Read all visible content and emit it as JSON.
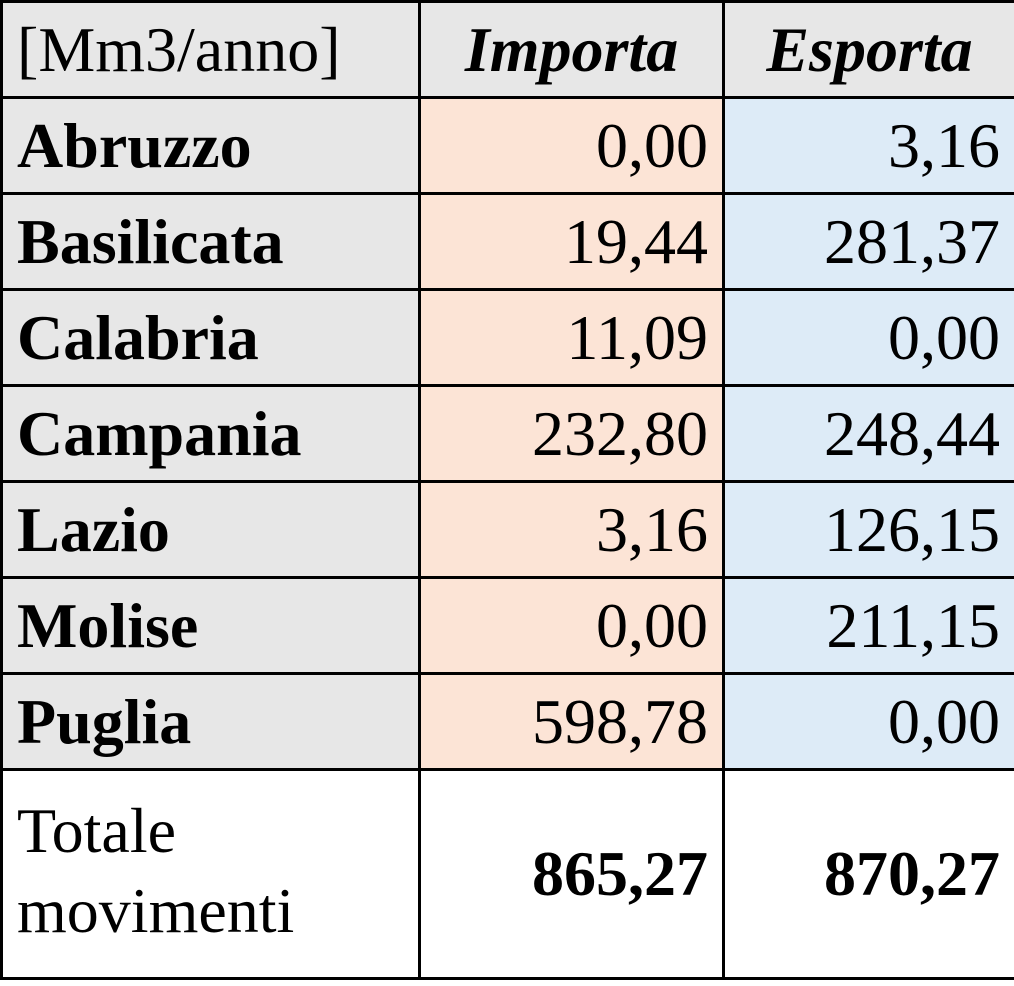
{
  "table": {
    "header": [
      "[Mm3/anno]",
      "Importa",
      "Esporta"
    ],
    "rows": [
      [
        "Abruzzo",
        "0,00",
        "3,16"
      ],
      [
        "Basilicata",
        "19,44",
        "281,37"
      ],
      [
        "Calabria",
        "11,09",
        "0,00"
      ],
      [
        "Campania",
        "232,80",
        "248,44"
      ],
      [
        "Lazio",
        "3,16",
        "126,15"
      ],
      [
        "Molise",
        "0,00",
        "211,15"
      ],
      [
        "Puglia",
        "598,78",
        "0,00"
      ]
    ],
    "total": [
      "Totale movimenti",
      "865,27",
      "870,27"
    ]
  }
}
